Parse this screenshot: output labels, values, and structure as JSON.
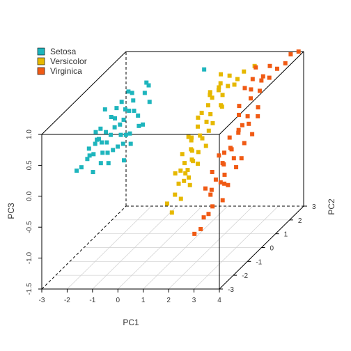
{
  "chart_data": {
    "type": "scatter",
    "title": "",
    "xlabel": "PC1",
    "ylabel": "PC2",
    "zlabel": "PC3",
    "xlim": [
      -3,
      4
    ],
    "ylim": [
      -3,
      3
    ],
    "zlim": [
      -1.5,
      1.0
    ],
    "x_ticks": [
      "-3",
      "-2",
      "-1",
      "0",
      "1",
      "2",
      "3",
      "4"
    ],
    "y_ticks": [
      "-3",
      "-2",
      "-1",
      "0",
      "1",
      "2",
      "3"
    ],
    "z_ticks": [
      "-1.5",
      "-1.0",
      "-0.5",
      "0.0",
      "0.5",
      "1.0"
    ],
    "grid": true,
    "legend_position": "top-left",
    "series": [
      {
        "name": "Setosa",
        "color": "#1eb5bd",
        "points": [
          [
            -2.7,
            -0.3,
            0.0
          ],
          [
            -2.6,
            0.2,
            0.2
          ],
          [
            -2.5,
            -0.5,
            0.1
          ],
          [
            -2.4,
            0.1,
            0.4
          ],
          [
            -2.3,
            -0.2,
            0.3
          ],
          [
            -2.2,
            0.5,
            0.5
          ],
          [
            -2.1,
            0.0,
            0.2
          ],
          [
            -2.0,
            -0.6,
            0.0
          ],
          [
            -2.0,
            0.4,
            0.5
          ],
          [
            -1.9,
            0.2,
            0.4
          ],
          [
            -1.8,
            -0.1,
            0.1
          ],
          [
            -1.7,
            0.6,
            0.6
          ],
          [
            -1.6,
            0.3,
            0.5
          ],
          [
            -1.5,
            -0.3,
            0.2
          ],
          [
            -1.5,
            0.8,
            0.7
          ],
          [
            -1.4,
            0.1,
            0.3
          ],
          [
            -1.3,
            0.5,
            0.6
          ],
          [
            -1.2,
            -0.4,
            0.0
          ],
          [
            -1.1,
            0.9,
            0.8
          ],
          [
            -1.0,
            0.3,
            0.4
          ],
          [
            -2.9,
            -0.7,
            -0.1
          ],
          [
            -2.8,
            0.0,
            0.1
          ],
          [
            -2.6,
            -0.9,
            0.0
          ],
          [
            -2.5,
            0.6,
            0.6
          ],
          [
            -2.3,
            0.3,
            0.3
          ],
          [
            -2.2,
            -0.8,
            -0.1
          ],
          [
            -2.1,
            0.7,
            0.6
          ],
          [
            -1.9,
            -0.3,
            0.1
          ],
          [
            -1.8,
            0.4,
            0.4
          ],
          [
            -1.7,
            -0.6,
            0.0
          ],
          [
            -1.6,
            0.9,
            0.8
          ],
          [
            -1.4,
            -0.1,
            0.2
          ],
          [
            -1.3,
            0.2,
            0.3
          ],
          [
            -1.2,
            0.6,
            0.5
          ],
          [
            -1.0,
            1.0,
            0.9
          ],
          [
            -0.9,
            0.4,
            0.4
          ],
          [
            -0.8,
            0.7,
            0.7
          ],
          [
            -2.4,
            -0.4,
            0.1
          ],
          [
            -2.0,
            0.1,
            0.3
          ],
          [
            -1.6,
            0.1,
            0.3
          ],
          [
            -2.7,
            0.3,
            0.3
          ],
          [
            -2.1,
            -0.3,
            0.1
          ],
          [
            -1.5,
            0.5,
            0.6
          ],
          [
            -1.9,
            0.7,
            0.7
          ],
          [
            -2.3,
            0.0,
            0.2
          ],
          [
            -1.1,
            -0.1,
            0.2
          ],
          [
            -2.5,
            -0.1,
            0.2
          ],
          [
            -1.8,
            1.0,
            0.8
          ],
          [
            -1.2,
            1.2,
            0.9
          ],
          [
            0.3,
            2.6,
            0.8
          ]
        ]
      },
      {
        "name": "Versicolor",
        "color": "#e6b800",
        "points": [
          [
            0.5,
            -0.4,
            -0.7
          ],
          [
            0.7,
            0.2,
            -0.3
          ],
          [
            0.8,
            -0.6,
            -0.8
          ],
          [
            0.9,
            0.4,
            0.2
          ],
          [
            1.0,
            -0.1,
            -0.4
          ],
          [
            1.1,
            0.7,
            0.3
          ],
          [
            1.2,
            0.1,
            -0.1
          ],
          [
            1.3,
            -0.3,
            -0.3
          ],
          [
            1.4,
            0.9,
            0.6
          ],
          [
            1.5,
            0.3,
            0.2
          ],
          [
            1.6,
            -0.2,
            -0.1
          ],
          [
            1.7,
            1.1,
            0.8
          ],
          [
            1.8,
            0.5,
            0.4
          ],
          [
            1.9,
            1.4,
            0.8
          ],
          [
            2.0,
            0.8,
            0.6
          ],
          [
            0.6,
            0.0,
            -0.3
          ],
          [
            0.9,
            0.6,
            0.1
          ],
          [
            1.1,
            -0.5,
            -0.6
          ],
          [
            1.3,
            0.5,
            0.2
          ],
          [
            1.5,
            1.0,
            0.7
          ],
          [
            1.7,
            0.2,
            0.1
          ],
          [
            0.8,
            0.3,
            -0.2
          ],
          [
            1.0,
            0.9,
            0.4
          ],
          [
            1.2,
            -0.2,
            -0.2
          ],
          [
            1.4,
            0.2,
            0.0
          ],
          [
            1.6,
            0.7,
            0.5
          ],
          [
            1.8,
            1.7,
            0.9
          ],
          [
            0.7,
            -0.2,
            -0.6
          ],
          [
            1.0,
            0.4,
            0.0
          ],
          [
            1.3,
            1.2,
            0.7
          ],
          [
            1.5,
            0.6,
            0.4
          ],
          [
            1.9,
            0.9,
            0.6
          ],
          [
            2.2,
            2.0,
            0.9
          ],
          [
            1.1,
            0.3,
            0.0
          ],
          [
            1.4,
            -0.4,
            -0.4
          ],
          [
            1.6,
            1.3,
            0.8
          ],
          [
            0.9,
            -0.3,
            -0.4
          ],
          [
            1.2,
            0.8,
            0.5
          ],
          [
            2.1,
            1.5,
            0.8
          ],
          [
            1.7,
            0.4,
            0.3
          ],
          [
            0.6,
            0.5,
            -0.1
          ],
          [
            1.0,
            0.0,
            -0.3
          ],
          [
            1.3,
            0.0,
            -0.1
          ],
          [
            1.8,
            1.2,
            0.7
          ],
          [
            2.4,
            2.4,
            0.9
          ],
          [
            1.5,
            1.6,
            0.8
          ],
          [
            1.2,
            1.4,
            0.7
          ],
          [
            0.8,
            0.8,
            0.1
          ],
          [
            2.0,
            1.9,
            0.8
          ],
          [
            1.4,
            1.8,
            0.9
          ]
        ]
      },
      {
        "name": "Virginica",
        "color": "#f05a14",
        "points": [
          [
            1.8,
            -0.8,
            -1.1
          ],
          [
            2.0,
            -0.5,
            -0.9
          ],
          [
            2.1,
            -0.2,
            -0.6
          ],
          [
            2.2,
            0.0,
            -0.4
          ],
          [
            2.3,
            0.3,
            -0.2
          ],
          [
            2.4,
            -0.6,
            -0.7
          ],
          [
            2.5,
            0.5,
            0.0
          ],
          [
            2.6,
            -0.1,
            -0.3
          ],
          [
            2.7,
            0.7,
            0.2
          ],
          [
            2.8,
            0.2,
            -0.1
          ],
          [
            2.9,
            -0.4,
            -0.4
          ],
          [
            3.0,
            0.9,
            0.3
          ],
          [
            3.1,
            0.4,
            0.1
          ],
          [
            3.2,
            1.2,
            0.5
          ],
          [
            3.3,
            0.6,
            0.2
          ],
          [
            2.0,
            0.1,
            -0.3
          ],
          [
            2.2,
            0.6,
            -0.1
          ],
          [
            2.4,
            0.2,
            -0.2
          ],
          [
            2.6,
            0.9,
            0.2
          ],
          [
            2.8,
            1.4,
            0.6
          ],
          [
            3.0,
            1.8,
            0.8
          ],
          [
            2.1,
            -0.9,
            -1.0
          ],
          [
            2.3,
            0.8,
            0.1
          ],
          [
            2.5,
            1.1,
            0.4
          ],
          [
            2.7,
            -0.3,
            -0.4
          ],
          [
            2.9,
            1.0,
            0.4
          ],
          [
            3.1,
            1.5,
            0.7
          ],
          [
            3.4,
            2.2,
            0.9
          ],
          [
            2.2,
            -0.3,
            -0.5
          ],
          [
            2.4,
            1.3,
            0.5
          ],
          [
            2.6,
            0.4,
            0.0
          ],
          [
            2.8,
            0.8,
            0.3
          ],
          [
            3.0,
            0.0,
            -0.2
          ],
          [
            3.2,
            2.0,
            0.8
          ],
          [
            3.5,
            2.6,
            0.9
          ],
          [
            2.3,
            -0.7,
            -0.8
          ],
          [
            2.5,
            -0.2,
            -0.4
          ],
          [
            2.7,
            1.6,
            0.7
          ],
          [
            2.9,
            2.1,
            0.8
          ],
          [
            3.3,
            1.0,
            0.4
          ],
          [
            2.1,
            0.4,
            -0.1
          ],
          [
            2.4,
            1.7,
            0.7
          ],
          [
            2.6,
            1.9,
            0.8
          ],
          [
            3.0,
            2.4,
            0.9
          ],
          [
            3.6,
            2.8,
            1.0
          ],
          [
            2.8,
            -0.6,
            -0.6
          ],
          [
            3.1,
            0.2,
            -0.1
          ],
          [
            2.5,
            2.3,
            0.9
          ],
          [
            1.9,
            -0.2,
            -0.5
          ],
          [
            3.8,
            3.0,
            1.0
          ]
        ]
      }
    ]
  }
}
